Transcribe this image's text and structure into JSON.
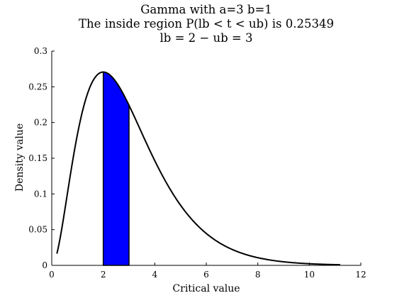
{
  "chart_data": {
    "type": "area",
    "title_lines": [
      "Gamma with a=3 b=1",
      "The inside region P(lb < t < ub) is 0.25349",
      "lb = 2 − ub = 3"
    ],
    "xlabel": "Critical value",
    "ylabel": "Density value",
    "xlim": [
      0,
      12
    ],
    "ylim": [
      0,
      0.3
    ],
    "xticks": [
      0,
      2,
      4,
      6,
      8,
      10,
      12
    ],
    "yticks": [
      0,
      0.05,
      0.1,
      0.15,
      0.2,
      0.25,
      0.3
    ],
    "ytick_labels": [
      "0",
      "0.05",
      "0.1",
      "0.15",
      "0.2",
      "0.25",
      "0.3"
    ],
    "grid": false,
    "distribution": {
      "name": "Gamma",
      "a": 3,
      "b": 1
    },
    "curve_x_range": [
      0.2,
      11.2
    ],
    "series": [
      {
        "x": [
          0.2,
          0.5,
          1.0,
          1.5,
          2.0,
          2.5,
          3.0,
          3.5,
          4.0,
          4.5,
          5.0,
          5.5,
          6.0,
          7.0,
          8.0,
          9.0,
          10.0,
          11.2
        ],
        "values": [
          0.0164,
          0.0758,
          0.1839,
          0.251,
          0.2707,
          0.2565,
          0.224,
          0.185,
          0.1465,
          0.1125,
          0.0842,
          0.0618,
          0.0446,
          0.0223,
          0.0107,
          0.005,
          0.0023,
          0.0008
        ]
      }
    ],
    "shaded_region": {
      "lb": 2,
      "ub": 3,
      "probability": 0.25349
    },
    "colors": {
      "curve": "#000000",
      "shade": "#0000ff",
      "axes": "#000000"
    }
  }
}
